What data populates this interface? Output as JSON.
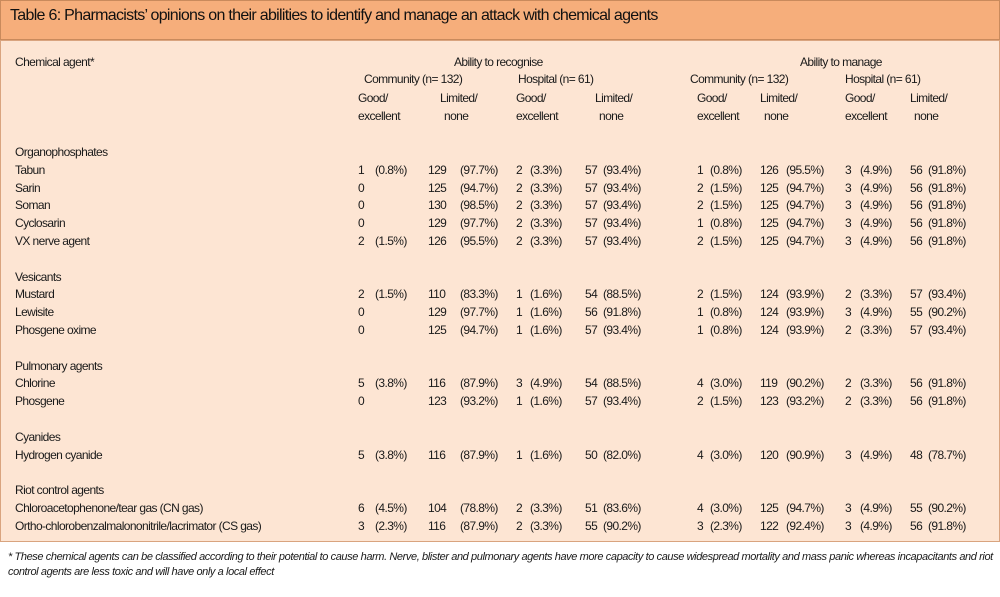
{
  "title": "Table 6: Pharmacists’ opinions on their abilities to identify and manage an attack with chemical agents",
  "header": {
    "first_column": "Chemical agent*",
    "groups": [
      {
        "label": "Ability to recognise",
        "subgroups": [
          "Community (n= 132)",
          "Hospital (n= 61)"
        ]
      },
      {
        "label": "Ability to manage",
        "subgroups": [
          "Community (n= 132)",
          "Hospital (n= 61)"
        ]
      }
    ],
    "columns": [
      [
        "Good/",
        "excellent"
      ],
      [
        "Limited/",
        "none"
      ],
      [
        "Good/",
        "excellent"
      ],
      [
        "Limited/",
        "none"
      ],
      [
        "Good/",
        "excellent"
      ],
      [
        "Limited/",
        "none"
      ],
      [
        "Good/",
        "excellent"
      ],
      [
        "Limited/",
        "none"
      ]
    ]
  },
  "sections": [
    {
      "name": "Organophosphates",
      "rows": [
        {
          "agent": "Tabun",
          "cells": [
            [
              "1",
              "(0.8%)"
            ],
            [
              "129",
              "(97.7%)"
            ],
            [
              "2",
              "(3.3%)"
            ],
            [
              "57",
              "(93.4%)"
            ],
            [
              "1",
              "(0.8%)"
            ],
            [
              "126",
              "(95.5%)"
            ],
            [
              "3",
              "(4.9%)"
            ],
            [
              "56",
              "(91.8%)"
            ]
          ]
        },
        {
          "agent": "Sarin",
          "cells": [
            [
              "0"
            ],
            [
              "125",
              "(94.7%)"
            ],
            [
              "2",
              "(3.3%)"
            ],
            [
              "57",
              "(93.4%)"
            ],
            [
              "2",
              "(1.5%)"
            ],
            [
              "125",
              "(94.7%)"
            ],
            [
              "3",
              "(4.9%)"
            ],
            [
              "56",
              "(91.8%)"
            ]
          ]
        },
        {
          "agent": "Soman",
          "cells": [
            [
              "0"
            ],
            [
              "130",
              "(98.5%)"
            ],
            [
              "2",
              "(3.3%)"
            ],
            [
              "57",
              "(93.4%)"
            ],
            [
              "2",
              "(1.5%)"
            ],
            [
              "125",
              "(94.7%)"
            ],
            [
              "3",
              "(4.9%)"
            ],
            [
              "56",
              "(91.8%)"
            ]
          ]
        },
        {
          "agent": "Cyclosarin",
          "cells": [
            [
              "0"
            ],
            [
              "129",
              "(97.7%)"
            ],
            [
              "2",
              "(3.3%)"
            ],
            [
              "57",
              "(93.4%)"
            ],
            [
              "1",
              "(0.8%)"
            ],
            [
              "125",
              "(94.7%)"
            ],
            [
              "3",
              "(4.9%)"
            ],
            [
              "56",
              "(91.8%)"
            ]
          ]
        },
        {
          "agent": "VX nerve agent",
          "cells": [
            [
              "2",
              "(1.5%)"
            ],
            [
              "126",
              "(95.5%)"
            ],
            [
              "2",
              "(3.3%)"
            ],
            [
              "57",
              "(93.4%)"
            ],
            [
              "2",
              "(1.5%)"
            ],
            [
              "125",
              "(94.7%)"
            ],
            [
              "3",
              "(4.9%)"
            ],
            [
              "56",
              "(91.8%)"
            ]
          ]
        }
      ]
    },
    {
      "name": "Vesicants",
      "rows": [
        {
          "agent": "Mustard",
          "cells": [
            [
              "2",
              "(1.5%)"
            ],
            [
              "110",
              "(83.3%)"
            ],
            [
              "1",
              "(1.6%)"
            ],
            [
              "54",
              "(88.5%)"
            ],
            [
              "2",
              "(1.5%)"
            ],
            [
              "124",
              "(93.9%)"
            ],
            [
              "2",
              "(3.3%)"
            ],
            [
              "57",
              "(93.4%)"
            ]
          ]
        },
        {
          "agent": "Lewisite",
          "cells": [
            [
              "0"
            ],
            [
              "129",
              "(97.7%)"
            ],
            [
              "1",
              "(1.6%)"
            ],
            [
              "56",
              "(91.8%)"
            ],
            [
              "1",
              "(0.8%)"
            ],
            [
              "124",
              "(93.9%)"
            ],
            [
              "3",
              "(4.9%)"
            ],
            [
              "55",
              "(90.2%)"
            ]
          ]
        },
        {
          "agent": "Phosgene oxime",
          "cells": [
            [
              "0"
            ],
            [
              "125",
              "(94.7%)"
            ],
            [
              "1",
              "(1.6%)"
            ],
            [
              "57",
              "(93.4%)"
            ],
            [
              "1",
              "(0.8%)"
            ],
            [
              "124",
              "(93.9%)"
            ],
            [
              "2",
              "(3.3%)"
            ],
            [
              "57",
              "(93.4%)"
            ]
          ]
        }
      ]
    },
    {
      "name": "Pulmonary agents",
      "rows": [
        {
          "agent": "Chlorine",
          "cells": [
            [
              "5",
              "(3.8%)"
            ],
            [
              "116",
              "(87.9%)"
            ],
            [
              "3",
              "(4.9%)"
            ],
            [
              "54",
              "(88.5%)"
            ],
            [
              "4",
              "(3.0%)"
            ],
            [
              "119",
              "(90.2%)"
            ],
            [
              "2",
              "(3.3%)"
            ],
            [
              "56",
              "(91.8%)"
            ]
          ]
        },
        {
          "agent": "Phosgene",
          "cells": [
            [
              "0"
            ],
            [
              "123",
              "(93.2%)"
            ],
            [
              "1",
              "(1.6%)"
            ],
            [
              "57",
              "(93.4%)"
            ],
            [
              "2",
              "(1.5%)"
            ],
            [
              "123",
              "(93.2%)"
            ],
            [
              "2",
              "(3.3%)"
            ],
            [
              "56",
              "(91.8%)"
            ]
          ]
        }
      ]
    },
    {
      "name": "Cyanides",
      "rows": [
        {
          "agent": "Hydrogen cyanide",
          "cells": [
            [
              "5",
              "(3.8%)"
            ],
            [
              "116",
              "(87.9%)"
            ],
            [
              "1",
              "(1.6%)"
            ],
            [
              "50",
              "(82.0%)"
            ],
            [
              "4",
              "(3.0%)"
            ],
            [
              "120",
              "(90.9%)"
            ],
            [
              "3",
              "(4.9%)"
            ],
            [
              "48",
              "(78.7%)"
            ]
          ]
        }
      ]
    },
    {
      "name": "Riot control agents",
      "rows": [
        {
          "agent": "Chloroacetophenone/tear gas (CN gas)",
          "cells": [
            [
              "6",
              "(4.5%)"
            ],
            [
              "104",
              "(78.8%)"
            ],
            [
              "2",
              "(3.3%)"
            ],
            [
              "51",
              "(83.6%)"
            ],
            [
              "4",
              "(3.0%)"
            ],
            [
              "125",
              "(94.7%)"
            ],
            [
              "3",
              "(4.9%)"
            ],
            [
              "55",
              "(90.2%)"
            ]
          ]
        },
        {
          "agent": "Ortho-chlorobenzalmalononitrile/lacrimator (CS gas)",
          "cells": [
            [
              "3",
              "(2.3%)"
            ],
            [
              "116",
              "(87.9%)"
            ],
            [
              "2",
              "(3.3%)"
            ],
            [
              "55",
              "(90.2%)"
            ],
            [
              "3",
              "(2.3%)"
            ],
            [
              "122",
              "(92.4%)"
            ],
            [
              "3",
              "(4.9%)"
            ],
            [
              "56",
              "(91.8%)"
            ]
          ]
        }
      ]
    }
  ],
  "footnote": "* These chemical agents can be classified according to their potential to cause harm. Nerve, blister and pulmonary agents have more capacity to cause widespread mortality and mass panic whereas incapacitants and riot control agents are less toxic and will have only a local effect"
}
